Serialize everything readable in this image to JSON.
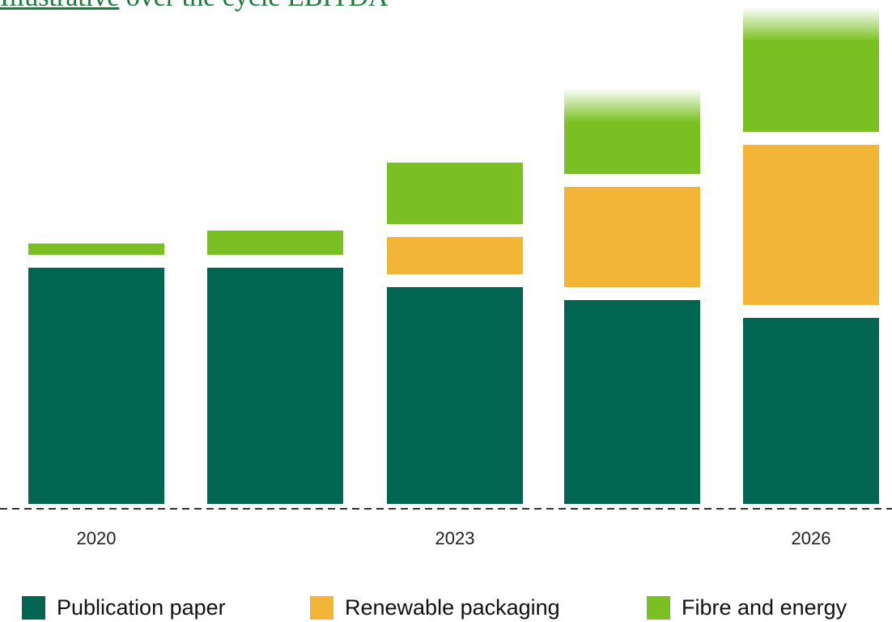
{
  "title": {
    "underlined": "Illustrative",
    "rest": " over the cycle EBITDA"
  },
  "colors": {
    "publication": "#006651",
    "packaging": "#f2b536",
    "fibre": "#7ac022"
  },
  "chart_data": {
    "type": "bar",
    "stacked": true,
    "categories": [
      "2020",
      "",
      "2023",
      "",
      "2026"
    ],
    "tick_labels": [
      "2020",
      "",
      "2023",
      "",
      "2026"
    ],
    "series": [
      {
        "name": "Publication paper",
        "values": [
          292,
          292,
          268,
          252,
          230
        ]
      },
      {
        "name": "Renewable packaging",
        "values": [
          0,
          0,
          46,
          124,
          198
        ]
      },
      {
        "name": "Fibre and energy",
        "values": [
          14,
          30,
          76,
          106,
          154
        ]
      }
    ],
    "faded_top": [
      false,
      false,
      false,
      true,
      true
    ],
    "legend": {
      "position": "bottom"
    }
  }
}
